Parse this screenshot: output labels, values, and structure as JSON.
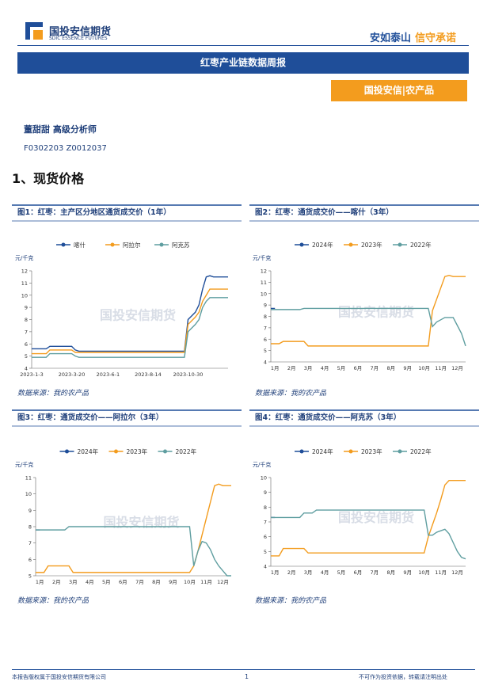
{
  "header": {
    "company": "国投安信期货",
    "company_en": "SDIC ESSENCE FUTURES",
    "slogan_a": "安如泰山",
    "slogan_b": "信守承诺"
  },
  "report_title": "红枣产业链数据周报",
  "tag": "国投安信|农产品",
  "author": "董甜甜 高级分析师",
  "license": "F0302203 Z0012037",
  "section": "1、现货价格",
  "chart_data": [
    {
      "type": "line",
      "title": "图1：红枣：主产区分地区通货成交价（1年）",
      "y_label": "元/千克",
      "watermark": "国投安信期货",
      "source": "数据来源：我的农产品",
      "categories": [
        "2023-1-3",
        null,
        null,
        null,
        null,
        null,
        null,
        null,
        null,
        null,
        null,
        "2023-3-20",
        null,
        null,
        null,
        null,
        null,
        null,
        null,
        null,
        null,
        "2023-6-1",
        null,
        null,
        null,
        null,
        null,
        null,
        null,
        null,
        null,
        null,
        "2023-8-14",
        null,
        null,
        null,
        null,
        null,
        null,
        null,
        null,
        null,
        null,
        "2023-10-30",
        null,
        null,
        null,
        null,
        null,
        null,
        null,
        null,
        null,
        null,
        null
      ],
      "ylim": [
        4,
        12
      ],
      "yticks": [
        4,
        5,
        6,
        7,
        8,
        9,
        10,
        11,
        12
      ],
      "series": [
        {
          "name": "喀什",
          "color": "#1f4e99",
          "values": [
            5.6,
            5.6,
            5.6,
            5.6,
            5.6,
            5.8,
            5.8,
            5.8,
            5.8,
            5.8,
            5.8,
            5.8,
            5.5,
            5.4,
            5.4,
            5.4,
            5.4,
            5.4,
            5.4,
            5.4,
            5.4,
            5.4,
            5.4,
            5.4,
            5.4,
            5.4,
            5.4,
            5.4,
            5.4,
            5.4,
            5.4,
            5.4,
            5.4,
            5.4,
            5.4,
            5.4,
            5.4,
            5.4,
            5.4,
            5.4,
            5.4,
            5.4,
            5.4,
            8.0,
            8.3,
            8.6,
            9.2,
            10.5,
            11.5,
            11.6,
            11.5,
            11.5,
            11.5,
            11.5,
            11.5
          ]
        },
        {
          "name": "阿拉尔",
          "color": "#f39c1e",
          "values": [
            5.2,
            5.2,
            5.2,
            5.2,
            5.2,
            5.5,
            5.5,
            5.5,
            5.5,
            5.5,
            5.5,
            5.5,
            5.3,
            5.3,
            5.3,
            5.3,
            5.3,
            5.3,
            5.3,
            5.3,
            5.3,
            5.3,
            5.3,
            5.3,
            5.3,
            5.3,
            5.3,
            5.3,
            5.3,
            5.3,
            5.3,
            5.3,
            5.3,
            5.3,
            5.3,
            5.3,
            5.3,
            5.3,
            5.3,
            5.3,
            5.3,
            5.3,
            5.3,
            7.6,
            7.9,
            8.2,
            8.6,
            9.5,
            10.0,
            10.5,
            10.5,
            10.5,
            10.5,
            10.5,
            10.5
          ]
        },
        {
          "name": "阿克苏",
          "color": "#5f9ea0",
          "values": [
            4.9,
            4.9,
            4.9,
            4.9,
            4.9,
            5.2,
            5.2,
            5.2,
            5.2,
            5.2,
            5.2,
            5.2,
            5.0,
            4.9,
            4.9,
            4.9,
            4.9,
            4.9,
            4.9,
            4.9,
            4.9,
            4.9,
            4.9,
            4.9,
            4.9,
            4.9,
            4.9,
            4.9,
            4.9,
            4.9,
            4.9,
            4.9,
            4.9,
            4.9,
            4.9,
            4.9,
            4.9,
            4.9,
            4.9,
            4.9,
            4.9,
            4.9,
            4.9,
            7.0,
            7.3,
            7.6,
            8.0,
            9.0,
            9.5,
            9.8,
            9.8,
            9.8,
            9.8,
            9.8,
            9.8
          ]
        }
      ]
    },
    {
      "type": "line",
      "title": "图2：红枣：通货成交价——喀什（3年）",
      "y_label": "元/千克",
      "watermark": "国投安信期货",
      "source": "数据来源：我的农产品",
      "categories": [
        null,
        "1月",
        null,
        null,
        null,
        "2月",
        null,
        null,
        null,
        "3月",
        null,
        null,
        null,
        "4月",
        null,
        null,
        null,
        "5月",
        null,
        null,
        null,
        "6月",
        null,
        null,
        null,
        "7月",
        null,
        null,
        null,
        "8月",
        null,
        null,
        null,
        "9月",
        null,
        null,
        null,
        "10月",
        null,
        null,
        null,
        "11月",
        null,
        null,
        null,
        "12月",
        null,
        null
      ],
      "ylim": [
        4,
        12
      ],
      "yticks": [
        4,
        5,
        6,
        7,
        8,
        9,
        10,
        11,
        12
      ],
      "series": [
        {
          "name": "2024年",
          "color": "#1f4e99",
          "values": [
            8.7,
            8.7,
            null,
            null,
            null,
            null,
            null,
            null,
            null,
            null,
            null,
            null,
            null,
            null,
            null,
            null,
            null,
            null,
            null,
            null,
            null,
            null,
            null,
            null,
            null,
            null,
            null,
            null,
            null,
            null,
            null,
            null,
            null,
            null,
            null,
            null,
            null,
            null,
            null,
            null,
            null,
            null,
            null,
            null,
            null,
            null,
            null,
            null
          ]
        },
        {
          "name": "2023年",
          "color": "#f39c1e",
          "values": [
            5.6,
            5.6,
            5.6,
            5.8,
            5.8,
            5.8,
            5.8,
            5.8,
            5.8,
            5.4,
            5.4,
            5.4,
            5.4,
            5.4,
            5.4,
            5.4,
            5.4,
            5.4,
            5.4,
            5.4,
            5.4,
            5.4,
            5.4,
            5.4,
            5.4,
            5.4,
            5.4,
            5.4,
            5.4,
            5.4,
            5.4,
            5.4,
            5.4,
            5.4,
            5.4,
            5.4,
            5.4,
            5.4,
            5.4,
            8.5,
            9.5,
            10.5,
            11.5,
            11.6,
            11.5,
            11.5,
            11.5,
            11.5
          ]
        },
        {
          "name": "2022年",
          "color": "#5f9ea0",
          "values": [
            8.6,
            8.6,
            8.6,
            8.6,
            8.6,
            8.6,
            8.6,
            8.6,
            8.7,
            8.7,
            8.7,
            8.7,
            8.7,
            8.7,
            8.7,
            8.7,
            8.7,
            8.7,
            8.7,
            8.7,
            8.7,
            8.7,
            8.7,
            8.7,
            8.7,
            8.7,
            8.7,
            8.7,
            8.7,
            8.7,
            8.7,
            8.7,
            8.7,
            8.7,
            8.7,
            8.7,
            8.7,
            8.7,
            8.7,
            7.1,
            7.5,
            7.7,
            7.9,
            7.9,
            7.9,
            7.2,
            6.5,
            5.4
          ]
        }
      ]
    },
    {
      "type": "line",
      "title": "图3：红枣：通货成交价——阿拉尔（3年）",
      "y_label": "元/千克",
      "watermark": "国投安信期货",
      "source": "数据来源：我的农产品",
      "categories": [
        null,
        "1月",
        null,
        null,
        null,
        "2月",
        null,
        null,
        null,
        "3月",
        null,
        null,
        null,
        "4月",
        null,
        null,
        null,
        "5月",
        null,
        null,
        null,
        "6月",
        null,
        null,
        null,
        "7月",
        null,
        null,
        null,
        "8月",
        null,
        null,
        null,
        "9月",
        null,
        null,
        null,
        "10月",
        null,
        null,
        null,
        "11月",
        null,
        null,
        null,
        "12月",
        null,
        null
      ],
      "ylim": [
        5,
        11
      ],
      "yticks": [
        5,
        6,
        7,
        8,
        9,
        10,
        11
      ],
      "series": [
        {
          "name": "2024年",
          "color": "#1f4e99",
          "values": [
            7.8,
            7.8,
            null,
            null,
            null,
            null,
            null,
            null,
            null,
            null,
            null,
            null,
            null,
            null,
            null,
            null,
            null,
            null,
            null,
            null,
            null,
            null,
            null,
            null,
            null,
            null,
            null,
            null,
            null,
            null,
            null,
            null,
            null,
            null,
            null,
            null,
            null,
            null,
            null,
            null,
            null,
            null,
            null,
            null,
            null,
            null,
            null,
            null
          ]
        },
        {
          "name": "2023年",
          "color": "#f39c1e",
          "values": [
            5.2,
            5.2,
            5.2,
            5.6,
            5.6,
            5.6,
            5.6,
            5.6,
            5.6,
            5.2,
            5.2,
            5.2,
            5.2,
            5.2,
            5.2,
            5.2,
            5.2,
            5.2,
            5.2,
            5.2,
            5.2,
            5.2,
            5.2,
            5.2,
            5.2,
            5.2,
            5.2,
            5.2,
            5.2,
            5.2,
            5.2,
            5.2,
            5.2,
            5.2,
            5.2,
            5.2,
            5.2,
            5.2,
            5.6,
            6.5,
            7.5,
            8.5,
            9.5,
            10.5,
            10.6,
            10.5,
            10.5,
            10.5
          ]
        },
        {
          "name": "2022年",
          "color": "#5f9ea0",
          "values": [
            7.8,
            7.8,
            7.8,
            7.8,
            7.8,
            7.8,
            7.8,
            7.8,
            8.0,
            8.0,
            8.0,
            8.0,
            8.0,
            8.0,
            8.0,
            8.0,
            8.0,
            8.0,
            8.0,
            8.0,
            8.0,
            8.0,
            8.0,
            8.0,
            8.0,
            8.0,
            8.0,
            8.0,
            8.0,
            8.0,
            8.0,
            8.0,
            8.0,
            8.0,
            8.0,
            8.0,
            8.0,
            8.0,
            5.6,
            6.5,
            7.1,
            7.0,
            6.6,
            6.0,
            5.6,
            5.3,
            5.0,
            5.0
          ]
        }
      ]
    },
    {
      "type": "line",
      "title": "图4：红枣：通货成交价——阿克苏（3年）",
      "y_label": "元/千克",
      "watermark": "国投安信期货",
      "source": "数据来源：我的农产品",
      "categories": [
        null,
        "1月",
        null,
        null,
        null,
        "2月",
        null,
        null,
        null,
        "3月",
        null,
        null,
        null,
        "4月",
        null,
        null,
        null,
        "5月",
        null,
        null,
        null,
        "6月",
        null,
        null,
        null,
        "7月",
        null,
        null,
        null,
        "8月",
        null,
        null,
        null,
        "9月",
        null,
        null,
        null,
        "10月",
        null,
        null,
        null,
        "11月",
        null,
        null,
        null,
        "12月",
        null,
        null
      ],
      "ylim": [
        4,
        10
      ],
      "yticks": [
        4,
        5,
        6,
        7,
        8,
        9,
        10
      ],
      "series": [
        {
          "name": "2024年",
          "color": "#1f4e99",
          "values": [
            7.3,
            7.3,
            null,
            null,
            null,
            null,
            null,
            null,
            null,
            null,
            null,
            null,
            null,
            null,
            null,
            null,
            null,
            null,
            null,
            null,
            null,
            null,
            null,
            null,
            null,
            null,
            null,
            null,
            null,
            null,
            null,
            null,
            null,
            null,
            null,
            null,
            null,
            null,
            null,
            null,
            null,
            null,
            null,
            null,
            null,
            null,
            null,
            null
          ]
        },
        {
          "name": "2023年",
          "color": "#f39c1e",
          "values": [
            4.7,
            4.7,
            4.7,
            5.2,
            5.2,
            5.2,
            5.2,
            5.2,
            5.2,
            4.9,
            4.9,
            4.9,
            4.9,
            4.9,
            4.9,
            4.9,
            4.9,
            4.9,
            4.9,
            4.9,
            4.9,
            4.9,
            4.9,
            4.9,
            4.9,
            4.9,
            4.9,
            4.9,
            4.9,
            4.9,
            4.9,
            4.9,
            4.9,
            4.9,
            4.9,
            4.9,
            4.9,
            4.9,
            6.0,
            6.8,
            7.6,
            8.5,
            9.5,
            9.8,
            9.8,
            9.8,
            9.8,
            9.8
          ]
        },
        {
          "name": "2022年",
          "color": "#5f9ea0",
          "values": [
            7.3,
            7.3,
            7.3,
            7.3,
            7.3,
            7.3,
            7.3,
            7.3,
            7.6,
            7.6,
            7.6,
            7.8,
            7.8,
            7.8,
            7.8,
            7.8,
            7.8,
            7.8,
            7.8,
            7.8,
            7.8,
            7.8,
            7.8,
            7.8,
            7.8,
            7.8,
            7.8,
            7.8,
            7.8,
            7.8,
            7.8,
            7.8,
            7.8,
            7.8,
            7.8,
            7.8,
            7.8,
            7.8,
            6.1,
            6.1,
            6.3,
            6.4,
            6.5,
            6.2,
            5.6,
            5.0,
            4.6,
            4.5
          ]
        }
      ]
    }
  ],
  "footer": {
    "copyright": "本报告版权属于国投安信期货有限公司",
    "page": "1",
    "disclaimer": "不可作为投资依据，转载请注明出处"
  }
}
